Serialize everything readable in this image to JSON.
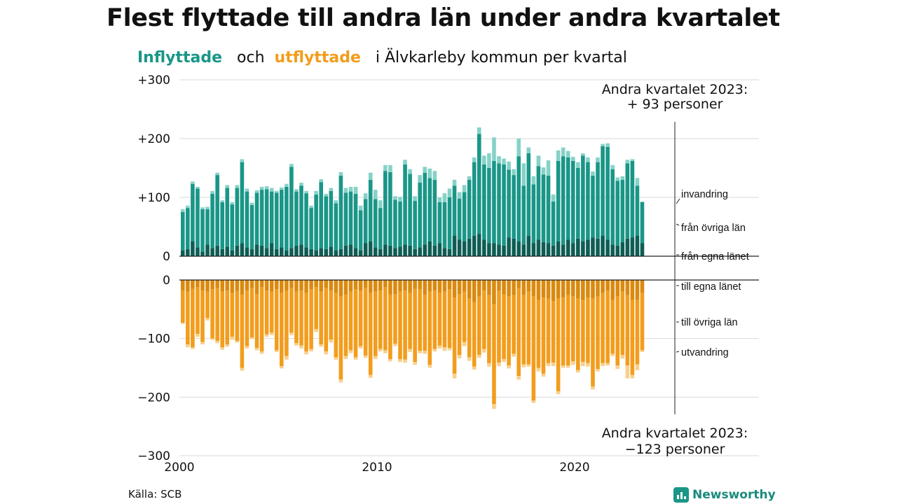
{
  "title": "Flest flyttade till andra län under andra kvartalet",
  "subtitle": {
    "in_word": "Inflyttade",
    "and_word": "och",
    "out_word": "utflyttade",
    "rest": "i Älvkarleby kommun per kvartal"
  },
  "source": "Källa: SCB",
  "brand": "Newsworthy",
  "colors": {
    "in_own_county": "#0f5d55",
    "in_other_counties": "#1a9688",
    "in_immigration": "#86d2c8",
    "out_own_county": "#d98a10",
    "out_other_counties": "#f29d1d",
    "out_emigration": "#f8d08e"
  },
  "chart_data": {
    "type": "bar",
    "stacked": true,
    "x": [
      "2000 Q1",
      "2000 Q2",
      "2000 Q3",
      "2000 Q4",
      "2001 Q1",
      "2001 Q2",
      "2001 Q3",
      "2001 Q4",
      "2002 Q1",
      "2002 Q2",
      "2002 Q3",
      "2002 Q4",
      "2003 Q1",
      "2003 Q2",
      "2003 Q3",
      "2003 Q4",
      "2004 Q1",
      "2004 Q2",
      "2004 Q3",
      "2004 Q4",
      "2005 Q1",
      "2005 Q2",
      "2005 Q3",
      "2005 Q4",
      "2006 Q1",
      "2006 Q2",
      "2006 Q3",
      "2006 Q4",
      "2007 Q1",
      "2007 Q2",
      "2007 Q3",
      "2007 Q4",
      "2008 Q1",
      "2008 Q2",
      "2008 Q3",
      "2008 Q4",
      "2009 Q1",
      "2009 Q2",
      "2009 Q3",
      "2009 Q4",
      "2010 Q1",
      "2010 Q2",
      "2010 Q3",
      "2010 Q4",
      "2011 Q1",
      "2011 Q2",
      "2011 Q3",
      "2011 Q4",
      "2012 Q1",
      "2012 Q2",
      "2012 Q3",
      "2012 Q4",
      "2013 Q1",
      "2013 Q2",
      "2013 Q3",
      "2013 Q4",
      "2014 Q1",
      "2014 Q2",
      "2014 Q3",
      "2014 Q4",
      "2015 Q1",
      "2015 Q2",
      "2015 Q3",
      "2015 Q4",
      "2016 Q1",
      "2016 Q2",
      "2016 Q3",
      "2016 Q4",
      "2017 Q1",
      "2017 Q2",
      "2017 Q3",
      "2017 Q4",
      "2018 Q1",
      "2018 Q2",
      "2018 Q3",
      "2018 Q4",
      "2019 Q1",
      "2019 Q2",
      "2019 Q3",
      "2019 Q4",
      "2020 Q1",
      "2020 Q2",
      "2020 Q3",
      "2020 Q4",
      "2021 Q1",
      "2021 Q2",
      "2021 Q3",
      "2021 Q4",
      "2022 Q1",
      "2022 Q2",
      "2022 Q3",
      "2022 Q4",
      "2023 Q1",
      "2023 Q2"
    ],
    "series": [
      {
        "name": "från egna länet",
        "group": "in",
        "values": [
          10,
          12,
          25,
          15,
          8,
          20,
          14,
          18,
          12,
          16,
          10,
          18,
          22,
          15,
          12,
          20,
          18,
          14,
          22,
          12,
          15,
          10,
          14,
          18,
          20,
          15,
          12,
          10,
          14,
          12,
          16,
          10,
          12,
          18,
          20,
          14,
          10,
          22,
          25,
          15,
          12,
          20,
          18,
          14,
          16,
          20,
          18,
          12,
          15,
          20,
          25,
          18,
          22,
          14,
          12,
          35,
          28,
          25,
          30,
          35,
          38,
          28,
          22,
          22,
          20,
          18,
          32,
          30,
          25,
          20,
          35,
          22,
          28,
          24,
          22,
          18,
          25,
          20,
          28,
          22,
          30,
          25,
          28,
          32,
          30,
          35,
          28,
          20,
          18,
          24,
          30,
          32,
          35,
          22
        ]
      },
      {
        "name": "från övriga län",
        "group": "in",
        "values": [
          65,
          70,
          98,
          100,
          72,
          60,
          92,
          120,
          80,
          100,
          78,
          98,
          138,
          95,
          75,
          88,
          95,
          100,
          88,
          96,
          98,
          108,
          138,
          92,
          100,
          92,
          70,
          95,
          112,
          90,
          95,
          80,
          125,
          90,
          90,
          92,
          68,
          75,
          105,
          82,
          70,
          125,
          125,
          82,
          77,
          136,
          122,
          82,
          110,
          122,
          108,
          112,
          70,
          78,
          88,
          85,
          70,
          84,
          100,
          125,
          170,
          128,
          128,
          140,
          138,
          138,
          115,
          108,
          145,
          100,
          140,
          100,
          125,
          115,
          115,
          75,
          137,
          150,
          140,
          140,
          120,
          146,
          132,
          105,
          130,
          152,
          158,
          128,
          110,
          106,
          128,
          130,
          85,
          70
        ]
      },
      {
        "name": "invandring",
        "group": "in",
        "values": [
          5,
          4,
          4,
          3,
          3,
          4,
          5,
          4,
          3,
          5,
          4,
          5,
          5,
          5,
          4,
          4,
          5,
          5,
          6,
          3,
          4,
          5,
          5,
          4,
          5,
          4,
          4,
          6,
          5,
          4,
          5,
          5,
          6,
          8,
          8,
          12,
          8,
          10,
          12,
          16,
          13,
          10,
          12,
          6,
          8,
          8,
          8,
          8,
          13,
          10,
          16,
          15,
          8,
          15,
          15,
          10,
          11,
          12,
          6,
          8,
          11,
          15,
          25,
          40,
          12,
          10,
          14,
          10,
          30,
          38,
          10,
          14,
          18,
          12,
          26,
          12,
          18,
          15,
          11,
          7,
          10,
          4,
          8,
          7,
          8,
          4,
          6,
          7,
          6,
          6,
          6,
          3,
          13,
          1
        ]
      },
      {
        "name": "till egna länet",
        "group": "out",
        "values": [
          -18,
          -20,
          -15,
          -12,
          -18,
          -20,
          -16,
          -14,
          -20,
          -18,
          -22,
          -19,
          -25,
          -18,
          -14,
          -24,
          -12,
          -18,
          -20,
          -16,
          -22,
          -18,
          -14,
          -20,
          -18,
          -22,
          -16,
          -12,
          -20,
          -14,
          -18,
          -22,
          -28,
          -25,
          -20,
          -16,
          -18,
          -14,
          -22,
          -20,
          -18,
          -12,
          -25,
          -24,
          -20,
          -18,
          -22,
          -15,
          -16,
          -25,
          -20,
          -18,
          -22,
          -20,
          -16,
          -30,
          -24,
          -20,
          -32,
          -38,
          -28,
          -18,
          -26,
          -42,
          -18,
          -25,
          -28,
          -26,
          -14,
          -26,
          -20,
          -28,
          -34,
          -30,
          -32,
          -36,
          -32,
          -30,
          -26,
          -28,
          -32,
          -34,
          -30,
          -32,
          -28,
          -22,
          -18,
          -34,
          -28,
          -20,
          -26,
          -34,
          -34,
          -22
        ]
      },
      {
        "name": "till övriga län",
        "group": "out",
        "values": [
          -55,
          -90,
          -100,
          -80,
          -88,
          -45,
          -84,
          -90,
          -95,
          -92,
          -75,
          -85,
          -125,
          -95,
          -84,
          -92,
          -110,
          -75,
          -70,
          -104,
          -125,
          -112,
          -76,
          -88,
          -94,
          -100,
          -102,
          -72,
          -90,
          -108,
          -84,
          -110,
          -142,
          -105,
          -100,
          -116,
          -95,
          -115,
          -140,
          -110,
          -100,
          -108,
          -110,
          -85,
          -115,
          -118,
          -96,
          -125,
          -105,
          -96,
          -125,
          -100,
          -90,
          -95,
          -100,
          -130,
          -104,
          -86,
          -100,
          -110,
          -100,
          -100,
          -116,
          -170,
          -123,
          -110,
          -118,
          -100,
          -150,
          -118,
          -124,
          -178,
          -116,
          -130,
          -110,
          -105,
          -158,
          -116,
          -120,
          -111,
          -122,
          -106,
          -112,
          -150,
          -124,
          -120,
          -124,
          -92,
          -118,
          -108,
          -120,
          -128,
          -110,
          -98
        ]
      },
      {
        "name": "utvandring",
        "group": "out",
        "values": [
          -2,
          -5,
          -3,
          -5,
          -4,
          -4,
          -2,
          -4,
          -4,
          -4,
          -5,
          -3,
          -5,
          -4,
          -3,
          -4,
          -4,
          -4,
          -4,
          -3,
          -4,
          -6,
          -4,
          -4,
          -5,
          -5,
          -4,
          -5,
          -4,
          -5,
          -5,
          -4,
          -5,
          -5,
          -5,
          -4,
          -4,
          -4,
          -5,
          -5,
          -4,
          -5,
          -4,
          -4,
          -5,
          -5,
          -5,
          -5,
          -4,
          -5,
          -5,
          -4,
          -5,
          -6,
          -4,
          -8,
          -6,
          -7,
          -6,
          -5,
          -5,
          -6,
          -6,
          -8,
          -6,
          -5,
          -5,
          -5,
          -6,
          -5,
          -4,
          -4,
          -6,
          -5,
          -5,
          -6,
          -5,
          -4,
          -4,
          -6,
          -4,
          -7,
          -6,
          -5,
          -4,
          -5,
          -4,
          -4,
          -6,
          -6,
          -22,
          -6,
          -10,
          -3
        ]
      }
    ],
    "y_ticks_upper": [
      {
        "value": 300,
        "label": "+300"
      },
      {
        "value": 200,
        "label": "+200"
      },
      {
        "value": 100,
        "label": "+100"
      },
      {
        "value": 0,
        "label": "0"
      }
    ],
    "y_ticks_lower": [
      {
        "value": 0,
        "label": "0"
      },
      {
        "value": -100,
        "label": "−100"
      },
      {
        "value": -200,
        "label": "−200"
      },
      {
        "value": -300,
        "label": "−300"
      }
    ],
    "ylim_upper": [
      0,
      300
    ],
    "ylim_lower": [
      -300,
      0
    ],
    "x_ticks": [
      {
        "label": "2000",
        "index": 0
      },
      {
        "label": "2010",
        "index": 40
      },
      {
        "label": "2020",
        "index": 80
      }
    ],
    "legend_in": [
      "invandring",
      "från övriga län",
      "från egna länet"
    ],
    "legend_out": [
      "till egna länet",
      "till övriga län",
      "utvandring"
    ],
    "annotation_in": {
      "line1": "Andra kvartalet 2023:",
      "line2": "+ 93 personer"
    },
    "annotation_out": {
      "line1": "Andra kvartalet 2023:",
      "line2": "−123 personer"
    },
    "grid": true,
    "legend_placement": "right"
  }
}
